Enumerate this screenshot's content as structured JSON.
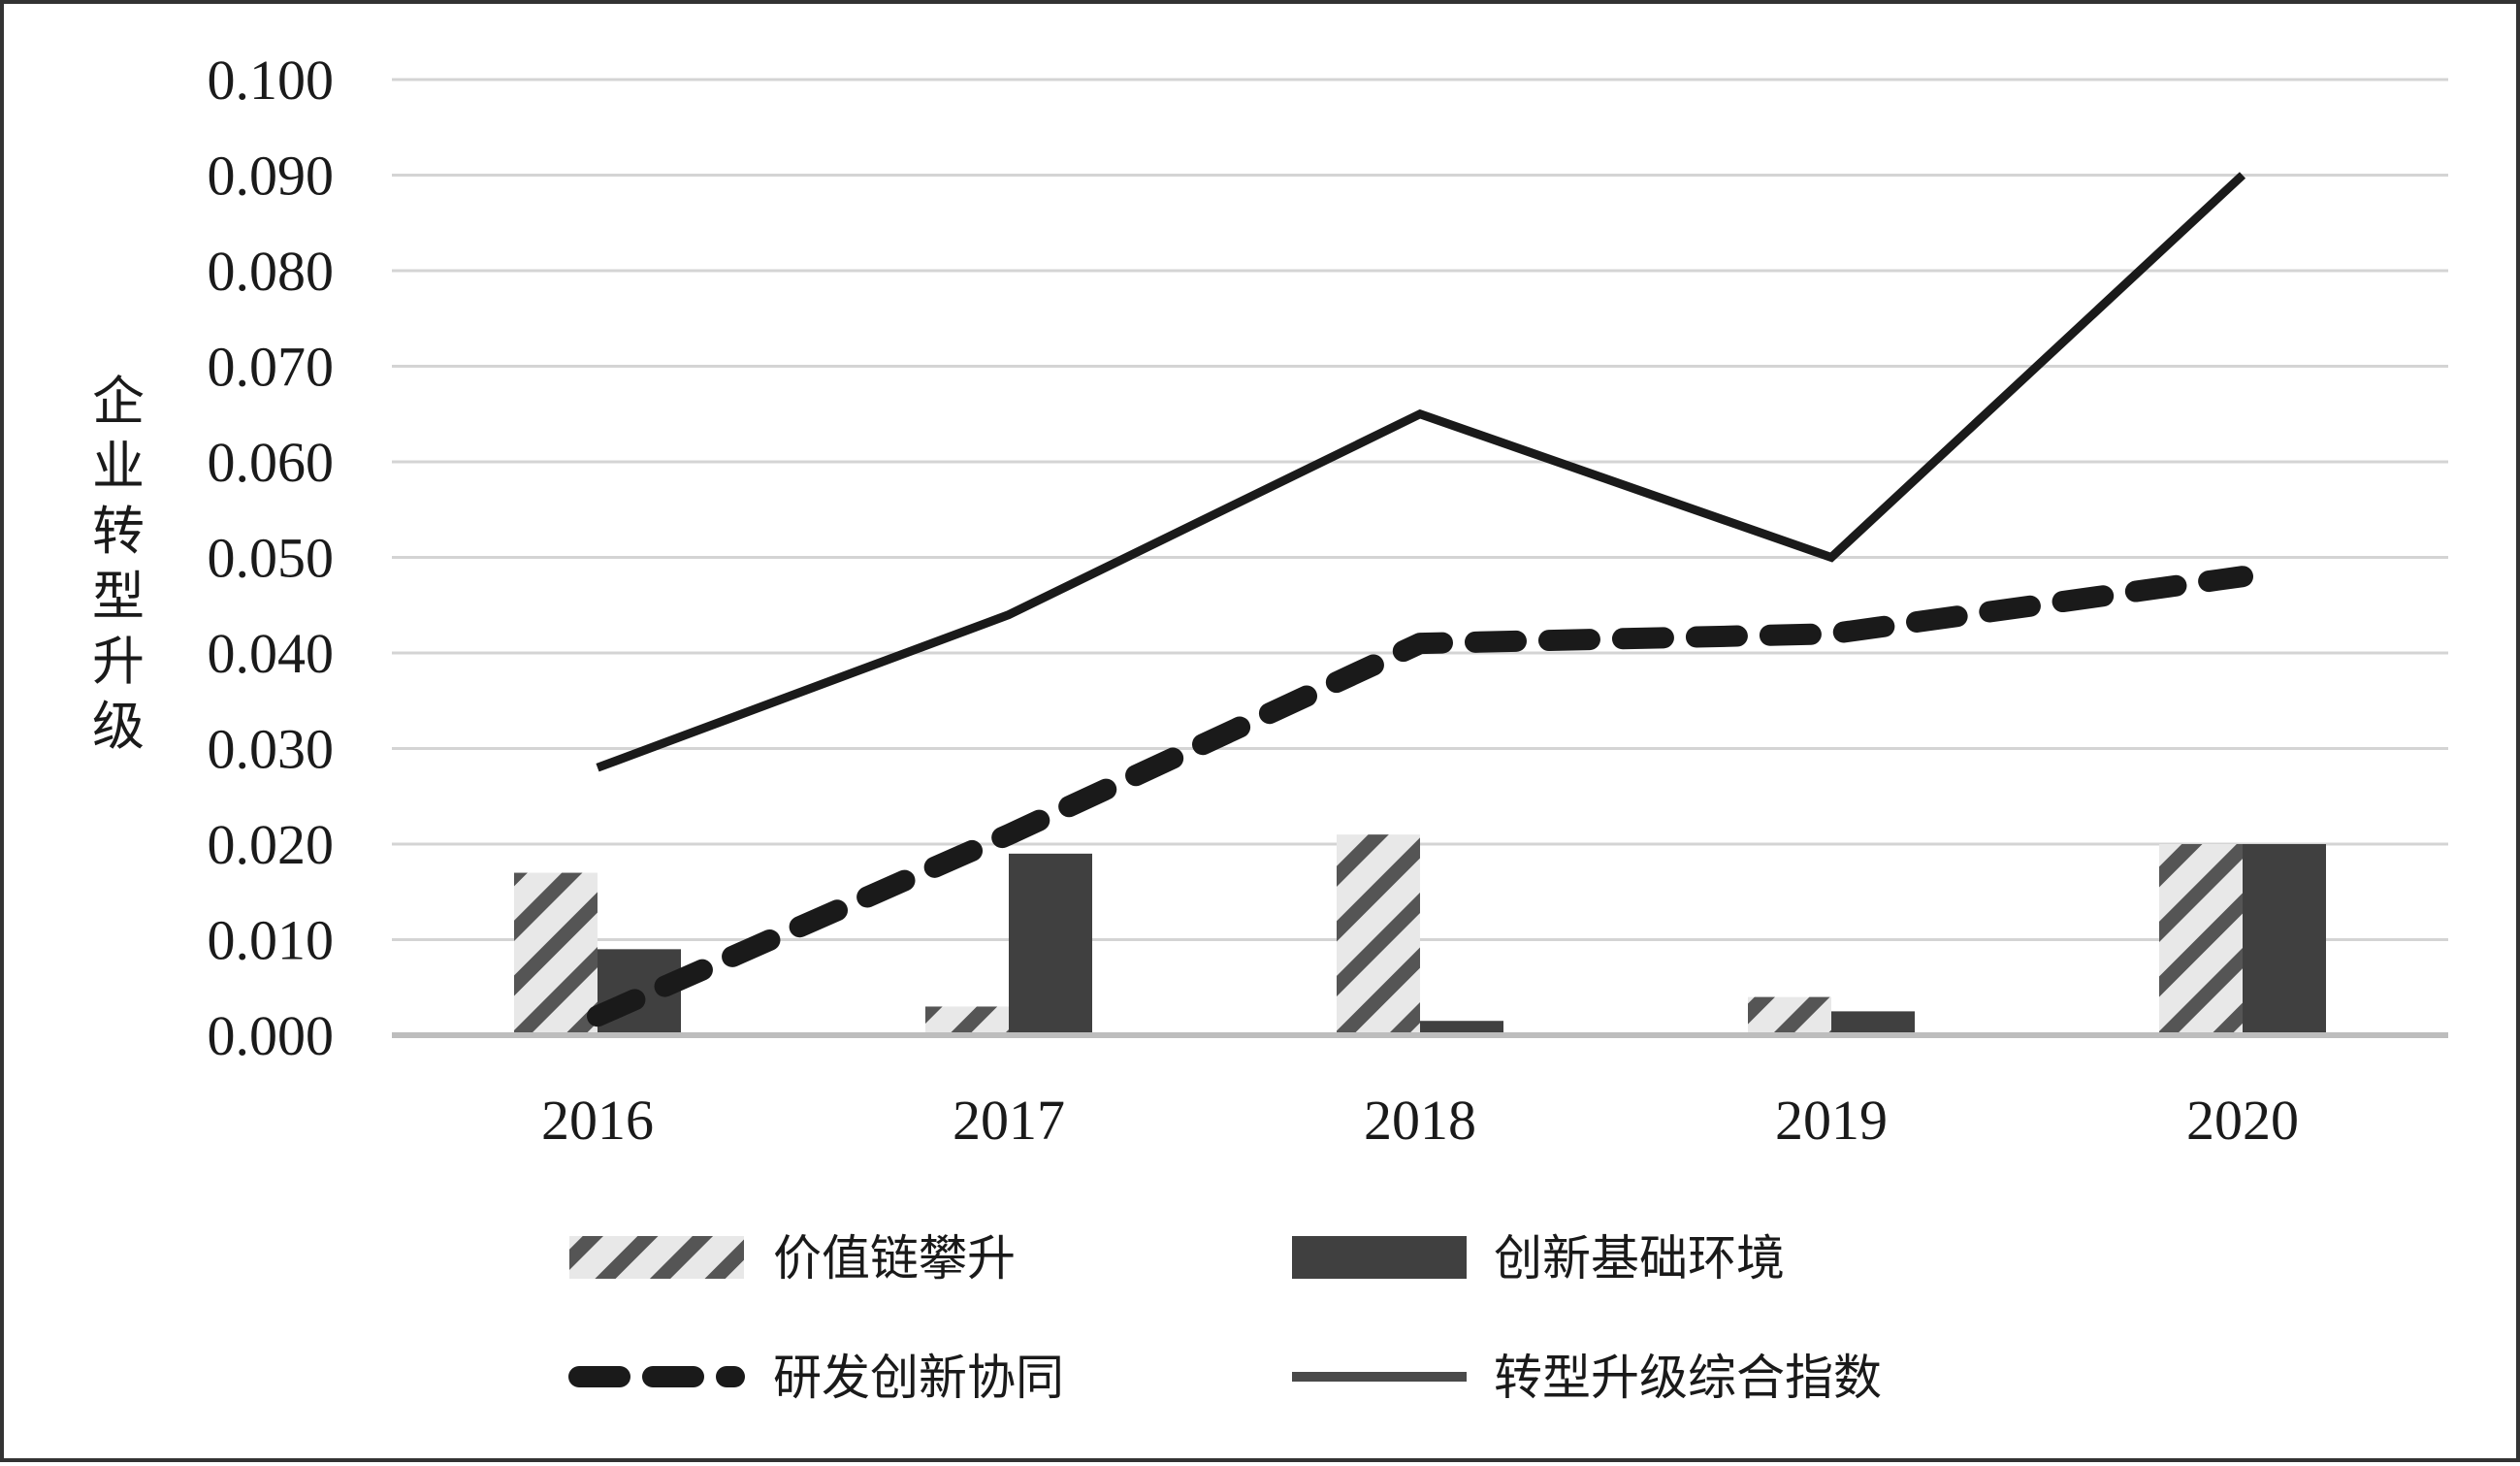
{
  "chart_data": {
    "type": "bar",
    "title": "",
    "xlabel": "",
    "ylabel": "企业转型升级",
    "categories": [
      "2016",
      "2017",
      "2018",
      "2019",
      "2020"
    ],
    "ylim": [
      0,
      0.1
    ],
    "yticks": [
      "0.000",
      "0.010",
      "0.020",
      "0.030",
      "0.040",
      "0.050",
      "0.060",
      "0.070",
      "0.080",
      "0.090",
      "0.100"
    ],
    "grid": true,
    "legend_position": "bottom",
    "series": [
      {
        "name": "价值链攀升",
        "type": "bar",
        "pattern": "diagonal-stripes",
        "color": "#555555",
        "values": [
          0.017,
          0.003,
          0.021,
          0.004,
          0.02
        ]
      },
      {
        "name": "创新基础环境",
        "type": "bar",
        "pattern": "solid",
        "color": "#404040",
        "values": [
          0.009,
          0.019,
          0.0015,
          0.0025,
          0.02
        ]
      },
      {
        "name": "研发创新协同",
        "type": "line",
        "style": "dashed",
        "color": "#1a1a1a",
        "values": [
          0.002,
          0.021,
          0.041,
          0.042,
          0.048
        ]
      },
      {
        "name": "转型升级综合指数",
        "type": "line",
        "style": "solid",
        "color": "#1a1a1a",
        "values": [
          0.028,
          0.044,
          0.065,
          0.05,
          0.09
        ]
      }
    ]
  }
}
